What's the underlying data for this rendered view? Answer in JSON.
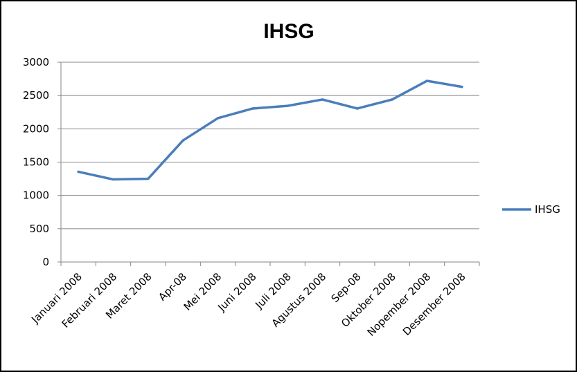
{
  "chart_data": {
    "type": "line",
    "title": "IHSG",
    "xlabel": "",
    "ylabel": "",
    "categories": [
      "Januari 2008",
      "Februari 2008",
      "Maret 2008",
      "Apr-08",
      "Mei 2008",
      "Juni 2008",
      "Juli 2008",
      "Agustus 2008",
      "Sep-08",
      "Oktober 2008",
      "Nopember 2008",
      "Desember 2008"
    ],
    "series": [
      {
        "name": "IHSG",
        "color": "#4a7ebb",
        "values": [
          1355,
          1240,
          1250,
          1825,
          2160,
          2305,
          2345,
          2440,
          2305,
          2440,
          2720,
          2630
        ]
      }
    ],
    "ylim": [
      0,
      3000
    ],
    "yticks": [
      0,
      500,
      1000,
      1500,
      2000,
      2500,
      3000
    ],
    "grid": true,
    "legend": "right"
  }
}
